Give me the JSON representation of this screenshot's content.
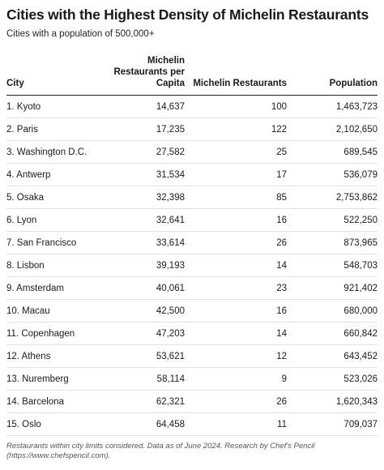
{
  "title": "Cities with the Highest Density of Michelin Restaurants",
  "subtitle": "Cities with a population of 500,000+",
  "chart_data": {
    "type": "table",
    "columns": [
      "City",
      "Michelin Restaurants per Capita",
      "Michelin Restaurants",
      "Population"
    ],
    "rows": [
      [
        "1. Kyoto",
        "14,637",
        "100",
        "1,463,723"
      ],
      [
        "2. Paris",
        "17,235",
        "122",
        "2,102,650"
      ],
      [
        "3. Washington D.C.",
        "27,582",
        "25",
        "689,545"
      ],
      [
        "4. Antwerp",
        "31,534",
        "17",
        "536,079"
      ],
      [
        "5. Osaka",
        "32,398",
        "85",
        "2,753,862"
      ],
      [
        "6. Lyon",
        "32,641",
        "16",
        "522,250"
      ],
      [
        "7. San Francisco",
        "33,614",
        "26",
        "873,965"
      ],
      [
        "8. Lisbon",
        "39,193",
        "14",
        "548,703"
      ],
      [
        "9. Amsterdam",
        "40,061",
        "23",
        "921,402"
      ],
      [
        "10. Macau",
        "42,500",
        "16",
        "680,000"
      ],
      [
        "11. Copenhagen",
        "47,203",
        "14",
        "660,842"
      ],
      [
        "12. Athens",
        "53,621",
        "12",
        "643,452"
      ],
      [
        "13. Nuremberg",
        "58,114",
        "9",
        "523,026"
      ],
      [
        "14. Barcelona",
        "62,321",
        "26",
        "1,620,343"
      ],
      [
        "15. Oslo",
        "64,458",
        "11",
        "709,037"
      ]
    ]
  },
  "footer": {
    "line1": "Restaurants within city limits considered. Data as of June 2024. Research by Chef's Pencil",
    "line2": "(https://www.chefspencil.com)."
  }
}
